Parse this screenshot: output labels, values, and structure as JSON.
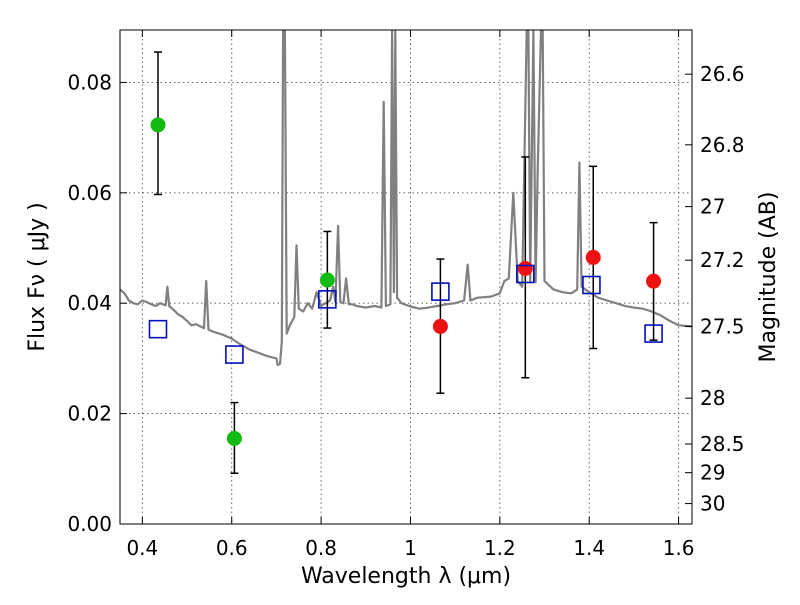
{
  "chart_data": {
    "type": "scatter",
    "title": "",
    "xlabel": "Wavelength  λ (μm)",
    "ylabel": "Flux  Fν  ( μJy )",
    "y2label": "Magnitude (AB)",
    "xlim": [
      0.35,
      1.63
    ],
    "ylim": [
      0.0,
      0.0895
    ],
    "x_ticks": [
      0.4,
      0.6,
      0.8,
      1.0,
      1.2,
      1.4,
      1.6
    ],
    "x_tick_labels": [
      "0.4",
      "0.6",
      "0.8",
      "1",
      "1.2",
      "1.4",
      "1.6"
    ],
    "y_ticks": [
      0.0,
      0.02,
      0.04,
      0.06,
      0.08
    ],
    "y_tick_labels": [
      "0.00",
      "0.02",
      "0.04",
      "0.06",
      "0.08"
    ],
    "y2_ticks": [
      {
        "label": "26.6",
        "flux": 0.0815
      },
      {
        "label": "26.8",
        "flux": 0.0687
      },
      {
        "label": "27",
        "flux": 0.0575
      },
      {
        "label": "27.2",
        "flux": 0.0478
      },
      {
        "label": "27.5",
        "flux": 0.0358
      },
      {
        "label": "28",
        "flux": 0.0228
      },
      {
        "label": "28.5",
        "flux": 0.0145
      },
      {
        "label": "29",
        "flux": 0.0093
      },
      {
        "label": "30",
        "flux": 0.0037
      }
    ],
    "grid": true,
    "colors": {
      "green": "#11bb11",
      "red": "#ee1111",
      "model_box": "#0011bb",
      "spectrum": "#808080",
      "errorbar": "#000000"
    },
    "series": [
      {
        "marker": "circle",
        "color": "#11bb11",
        "points": [
          {
            "x": 0.435,
            "y": 0.0723,
            "err_low": 0.0597,
            "err_high": 0.0855
          },
          {
            "x": 0.606,
            "y": 0.0155,
            "err_low": 0.0092,
            "err_high": 0.022
          },
          {
            "x": 0.814,
            "y": 0.0442,
            "err_low": 0.0355,
            "err_high": 0.053
          }
        ]
      },
      {
        "marker": "circle",
        "color": "#ee1111",
        "points": [
          {
            "x": 1.067,
            "y": 0.0358,
            "err_low": 0.0237,
            "err_high": 0.048
          },
          {
            "x": 1.257,
            "y": 0.0463,
            "err_low": 0.0265,
            "err_high": 0.0665
          },
          {
            "x": 1.409,
            "y": 0.0483,
            "err_low": 0.0318,
            "err_high": 0.0648
          },
          {
            "x": 1.544,
            "y": 0.044,
            "err_low": 0.0333,
            "err_high": 0.0546
          }
        ]
      },
      {
        "marker": "open-square",
        "color": "#0011bb",
        "points": [
          {
            "x": 0.435,
            "y": 0.0353
          },
          {
            "x": 0.606,
            "y": 0.0307
          },
          {
            "x": 0.814,
            "y": 0.0407
          },
          {
            "x": 1.067,
            "y": 0.0421
          },
          {
            "x": 1.257,
            "y": 0.0453
          },
          {
            "x": 1.405,
            "y": 0.0433
          },
          {
            "x": 1.544,
            "y": 0.0345
          }
        ]
      }
    ],
    "spectrum": {
      "color": "#808080",
      "points": [
        [
          0.35,
          0.0425
        ],
        [
          0.36,
          0.0418
        ],
        [
          0.37,
          0.0405
        ],
        [
          0.38,
          0.04
        ],
        [
          0.39,
          0.0398
        ],
        [
          0.4,
          0.0405
        ],
        [
          0.41,
          0.0402
        ],
        [
          0.42,
          0.0398
        ],
        [
          0.43,
          0.0395
        ],
        [
          0.44,
          0.04
        ],
        [
          0.452,
          0.0396
        ],
        [
          0.456,
          0.043
        ],
        [
          0.46,
          0.0395
        ],
        [
          0.47,
          0.0388
        ],
        [
          0.48,
          0.038
        ],
        [
          0.49,
          0.0375
        ],
        [
          0.5,
          0.0368
        ],
        [
          0.51,
          0.036
        ],
        [
          0.52,
          0.0362
        ],
        [
          0.53,
          0.0358
        ],
        [
          0.538,
          0.0355
        ],
        [
          0.543,
          0.044
        ],
        [
          0.548,
          0.0352
        ],
        [
          0.56,
          0.0348
        ],
        [
          0.58,
          0.0343
        ],
        [
          0.6,
          0.0336
        ],
        [
          0.62,
          0.0325
        ],
        [
          0.64,
          0.0316
        ],
        [
          0.66,
          0.031
        ],
        [
          0.68,
          0.0304
        ],
        [
          0.7,
          0.03
        ],
        [
          0.703,
          0.0288
        ],
        [
          0.708,
          0.029
        ],
        [
          0.712,
          0.033
        ],
        [
          0.715,
          0.0895
        ],
        [
          0.719,
          0.0895
        ],
        [
          0.723,
          0.0345
        ],
        [
          0.73,
          0.036
        ],
        [
          0.74,
          0.0375
        ],
        [
          0.745,
          0.0505
        ],
        [
          0.75,
          0.039
        ],
        [
          0.76,
          0.0385
        ],
        [
          0.77,
          0.04
        ],
        [
          0.78,
          0.039
        ],
        [
          0.79,
          0.042
        ],
        [
          0.8,
          0.0395
        ],
        [
          0.81,
          0.04
        ],
        [
          0.82,
          0.0405
        ],
        [
          0.827,
          0.043
        ],
        [
          0.832,
          0.0402
        ],
        [
          0.838,
          0.054
        ],
        [
          0.843,
          0.0402
        ],
        [
          0.85,
          0.04
        ],
        [
          0.856,
          0.0445
        ],
        [
          0.862,
          0.0398
        ],
        [
          0.87,
          0.0398
        ],
        [
          0.88,
          0.0395
        ],
        [
          0.9,
          0.0392
        ],
        [
          0.92,
          0.0395
        ],
        [
          0.935,
          0.0392
        ],
        [
          0.94,
          0.0765
        ],
        [
          0.945,
          0.0395
        ],
        [
          0.955,
          0.0398
        ],
        [
          0.959,
          0.0895
        ],
        [
          0.963,
          0.042
        ],
        [
          0.966,
          0.0895
        ],
        [
          0.97,
          0.041
        ],
        [
          0.98,
          0.04
        ],
        [
          1.0,
          0.0394
        ],
        [
          1.02,
          0.039
        ],
        [
          1.04,
          0.0392
        ],
        [
          1.06,
          0.0395
        ],
        [
          1.08,
          0.0398
        ],
        [
          1.1,
          0.04
        ],
        [
          1.12,
          0.0405
        ],
        [
          1.128,
          0.047
        ],
        [
          1.134,
          0.0405
        ],
        [
          1.15,
          0.041
        ],
        [
          1.18,
          0.0412
        ],
        [
          1.2,
          0.0418
        ],
        [
          1.21,
          0.044
        ],
        [
          1.22,
          0.0445
        ],
        [
          1.23,
          0.06
        ],
        [
          1.24,
          0.044
        ],
        [
          1.25,
          0.043
        ],
        [
          1.26,
          0.0895
        ],
        [
          1.264,
          0.0895
        ],
        [
          1.268,
          0.044
        ],
        [
          1.275,
          0.0895
        ],
        [
          1.28,
          0.0438
        ],
        [
          1.285,
          0.065
        ],
        [
          1.292,
          0.0895
        ],
        [
          1.296,
          0.0895
        ],
        [
          1.3,
          0.044
        ],
        [
          1.32,
          0.0425
        ],
        [
          1.34,
          0.042
        ],
        [
          1.36,
          0.0418
        ],
        [
          1.373,
          0.0425
        ],
        [
          1.378,
          0.0655
        ],
        [
          1.383,
          0.043
        ],
        [
          1.4,
          0.042
        ],
        [
          1.42,
          0.041
        ],
        [
          1.44,
          0.0405
        ],
        [
          1.46,
          0.04
        ],
        [
          1.48,
          0.0395
        ],
        [
          1.5,
          0.0392
        ],
        [
          1.52,
          0.039
        ],
        [
          1.54,
          0.0385
        ],
        [
          1.56,
          0.0378
        ],
        [
          1.58,
          0.0368
        ],
        [
          1.6,
          0.036
        ],
        [
          1.63,
          0.0358
        ]
      ]
    }
  }
}
